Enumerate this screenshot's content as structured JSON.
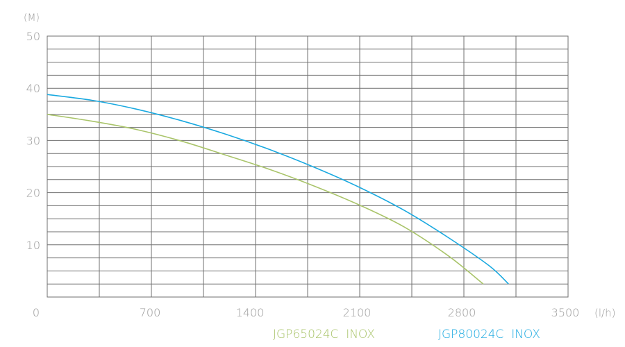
{
  "chart_data": {
    "type": "line",
    "title": "",
    "xlabel": "(l/h)",
    "ylabel": "(M)",
    "xlim": [
      0,
      3500
    ],
    "ylim": [
      0,
      50
    ],
    "x_ticks": [
      0,
      700,
      1400,
      2100,
      2800,
      3500
    ],
    "x_tick_labels": [
      "0",
      "700",
      "1400",
      "2100",
      "2800",
      "3500"
    ],
    "y_ticks": [
      10,
      20,
      30,
      40,
      50
    ],
    "y_tick_labels": [
      "10",
      "20",
      "30",
      "40",
      "50"
    ],
    "grid": true,
    "legend_position": "bottom-right",
    "series": [
      {
        "name": "JGP65024C  INOX",
        "color": "#a9c46a",
        "x": [
          0,
          300,
          600,
          900,
          1200,
          1500,
          1800,
          2100,
          2400,
          2700,
          2930
        ],
        "y": [
          35,
          33.7,
          32.1,
          29.9,
          27.2,
          24.4,
          21.2,
          17.6,
          13.4,
          7.8,
          2.5
        ]
      },
      {
        "name": "JGP80024C  INOX",
        "color": "#1aa9e0",
        "x": [
          0,
          300,
          600,
          900,
          1200,
          1500,
          1800,
          2100,
          2400,
          2700,
          2970,
          3100
        ],
        "y": [
          38.8,
          37.7,
          36,
          33.8,
          31.2,
          28.2,
          24.8,
          21,
          16.6,
          11.3,
          6,
          2.5
        ]
      }
    ]
  }
}
